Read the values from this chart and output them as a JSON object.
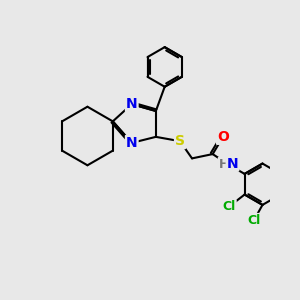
{
  "bg_color": "#e8e8e8",
  "bond_color": "#000000",
  "bond_width": 1.5,
  "atom_colors": {
    "N": "#0000ee",
    "S": "#cccc00",
    "O": "#ff0000",
    "Cl": "#00aa00",
    "C": "#000000",
    "H": "#808080"
  },
  "font_size_atom": 10,
  "font_size_small": 9
}
